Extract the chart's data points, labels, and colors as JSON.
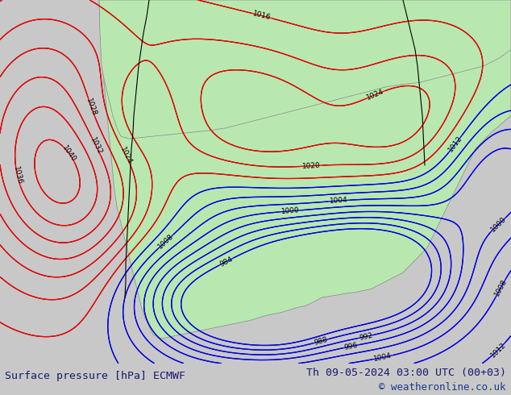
{
  "title_left": "Surface pressure [hPa] ECMWF",
  "title_right": "Th 09-05-2024 03:00 UTC (00+03)",
  "copyright": "© weatheronline.co.uk",
  "title_color": "#1a1a6e",
  "copyright_color": "#1a3a8a",
  "background_color": "#d0d0d0",
  "land_color": "#b8e8b0",
  "ocean_color": "#d0d0d0",
  "fig_width": 6.34,
  "fig_height": 4.9,
  "dpi": 100
}
